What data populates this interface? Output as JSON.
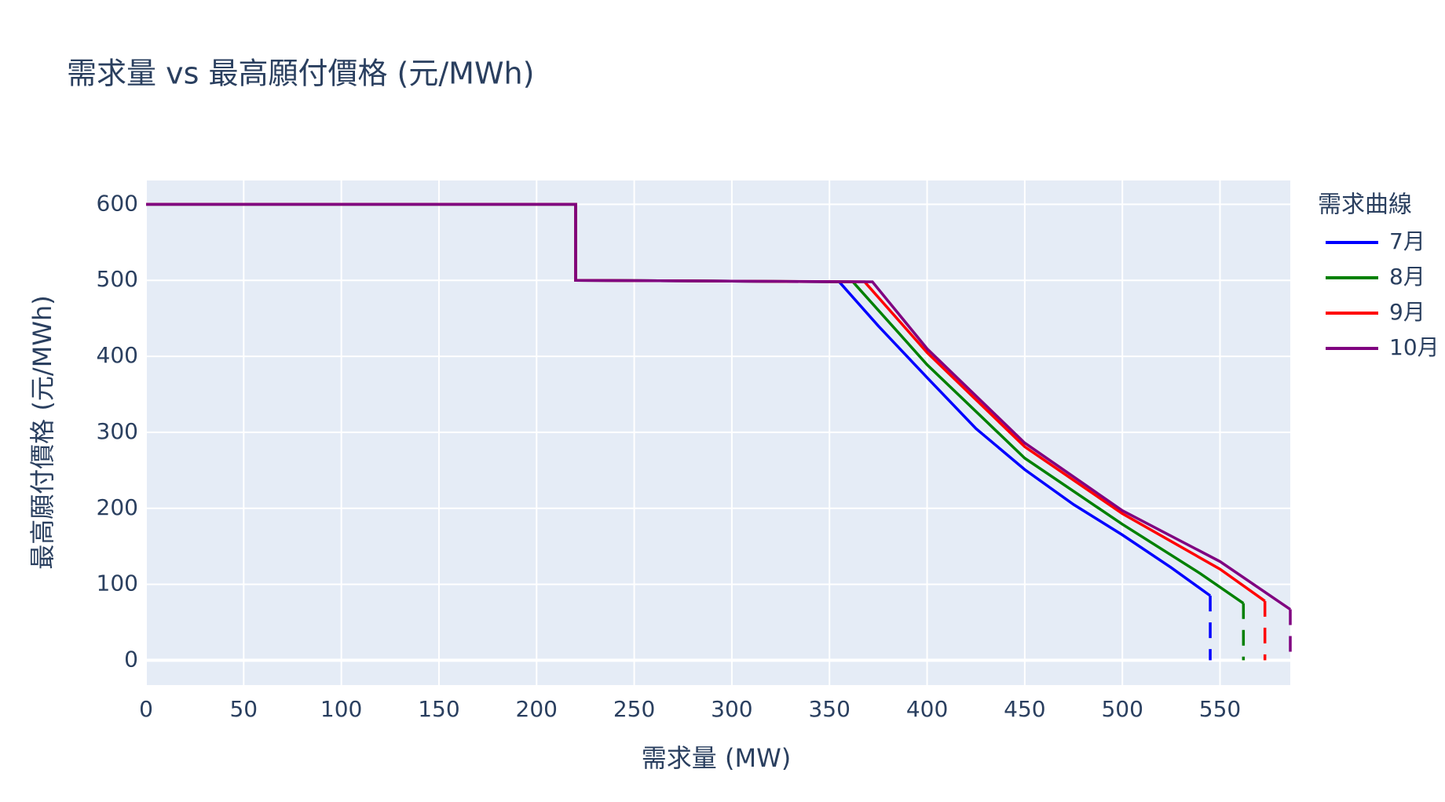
{
  "chart_data": {
    "type": "line",
    "title": "需求量 vs 最高願付價格 (元/MWh)",
    "x_label": "需求量 (MW)",
    "y_label": "最高願付價格 (元/MWh)",
    "legend_title": "需求曲線",
    "xlim": [
      0,
      586
    ],
    "ylim": [
      -32.6,
      631.4
    ],
    "xticks": [
      0,
      50,
      100,
      150,
      200,
      250,
      300,
      350,
      400,
      450,
      500,
      550
    ],
    "yticks": [
      0,
      100,
      200,
      300,
      400,
      500,
      600
    ],
    "grid": true,
    "legend": "right",
    "series": [
      {
        "name": "7月",
        "color": "#0000ff",
        "x": [
          0,
          220,
          220,
          300,
          355,
          375,
          400,
          425,
          450,
          475,
          500,
          525,
          545
        ],
        "values": [
          600,
          600,
          500,
          499,
          498,
          440,
          372,
          305,
          251,
          205,
          165,
          122,
          85
        ]
      },
      {
        "name": "8月",
        "color": "#008000",
        "x": [
          0,
          220,
          220,
          300,
          362,
          400,
          450,
          500,
          540,
          562
        ],
        "values": [
          600,
          600,
          500,
          499,
          498,
          389,
          266,
          179,
          114,
          75
        ]
      },
      {
        "name": "9月",
        "color": "#ff0000",
        "x": [
          0,
          220,
          220,
          300,
          368,
          400,
          450,
          500,
          550,
          573
        ],
        "values": [
          600,
          600,
          500,
          499,
          498,
          405,
          281,
          193,
          120,
          78
        ]
      },
      {
        "name": "10月",
        "color": "#800080",
        "x": [
          0,
          220,
          220,
          300,
          372,
          400,
          450,
          500,
          550,
          586
        ],
        "values": [
          600,
          600,
          500,
          499,
          498,
          410,
          286,
          197,
          130,
          67
        ]
      }
    ]
  }
}
